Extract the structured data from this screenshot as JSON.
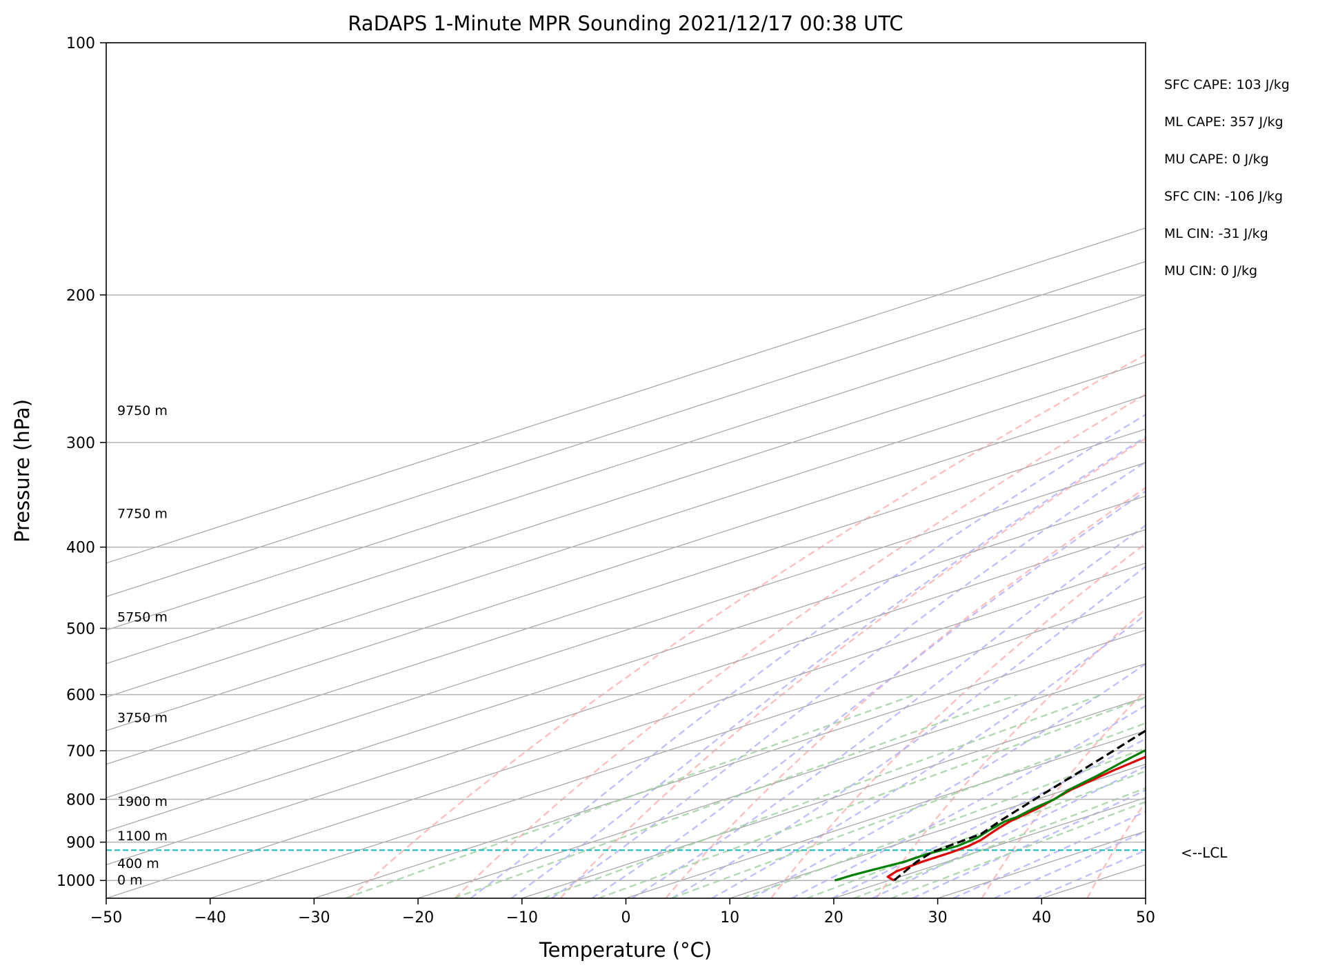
{
  "chart_data": {
    "type": "line",
    "subtype": "skew-t log-p",
    "title": "RaDAPS 1-Minute MPR Sounding 2021/12/17 00:38 UTC",
    "xlabel": "Temperature (°C)",
    "ylabel": "Pressure (hPa)",
    "xlim": [
      -50,
      50
    ],
    "ylim": [
      1050,
      100
    ],
    "y_scale": "log",
    "x_ticks": [
      -50,
      -40,
      -30,
      -20,
      -10,
      0,
      10,
      20,
      30,
      40,
      50
    ],
    "x_tick_labels": [
      "−50",
      "−40",
      "−30",
      "−20",
      "−10",
      "0",
      "10",
      "20",
      "30",
      "40",
      "50"
    ],
    "y_ticks": [
      1000,
      900,
      800,
      700,
      600,
      500,
      400,
      300,
      200,
      100
    ],
    "y_tick_labels": [
      "1000",
      "900",
      "800",
      "700",
      "600",
      "500",
      "400",
      "300",
      "200",
      "100"
    ],
    "grid": true,
    "series": [
      {
        "role": "temperature",
        "color": "#e00000",
        "points": [
          [
            1000,
            20.5
          ],
          [
            990,
            18.8
          ],
          [
            975,
            18.0
          ],
          [
            950,
            17.6
          ],
          [
            925,
            17.6
          ],
          [
            910,
            17.4
          ],
          [
            895,
            16.8
          ],
          [
            870,
            15.2
          ],
          [
            850,
            14.0
          ],
          [
            820,
            12.8
          ],
          [
            780,
            10.5
          ],
          [
            740,
            8.8
          ],
          [
            700,
            7.4
          ],
          [
            660,
            5.7
          ],
          [
            620,
            3.9
          ],
          [
            580,
            2.0
          ],
          [
            540,
            0.0
          ],
          [
            500,
            -2.8
          ],
          [
            470,
            -5.4
          ],
          [
            440,
            -7.6
          ],
          [
            400,
            -11.0
          ],
          [
            360,
            -15.4
          ],
          [
            330,
            -18.5
          ],
          [
            300,
            -22.0
          ],
          [
            280,
            -24.2
          ],
          [
            265,
            -25.4
          ]
        ]
      },
      {
        "role": "dewpoint",
        "color": "#008000",
        "points": [
          [
            1000,
            14.8
          ],
          [
            985,
            14.9
          ],
          [
            970,
            15.3
          ],
          [
            950,
            15.9
          ],
          [
            930,
            15.8
          ],
          [
            910,
            16.3
          ],
          [
            890,
            15.8
          ],
          [
            870,
            14.6
          ],
          [
            850,
            13.5
          ],
          [
            840,
            13.4
          ],
          [
            820,
            12.4
          ],
          [
            800,
            11.7
          ],
          [
            780,
            10.3
          ],
          [
            750,
            8.8
          ],
          [
            720,
            7.0
          ],
          [
            690,
            5.3
          ],
          [
            660,
            3.3
          ],
          [
            640,
            2.4
          ],
          [
            620,
            0.1
          ],
          [
            600,
            -2.6
          ],
          [
            570,
            -7.8
          ],
          [
            545,
            -11.0
          ],
          [
            530,
            -11.7
          ],
          [
            500,
            -14.7
          ],
          [
            470,
            -19.1
          ],
          [
            440,
            -24.4
          ],
          [
            420,
            -26.0
          ],
          [
            400,
            -27.8
          ],
          [
            380,
            -28.2
          ],
          [
            360,
            -29.7
          ],
          [
            340,
            -30.9
          ],
          [
            330,
            -31.2
          ],
          [
            320,
            -31.0
          ],
          [
            310,
            -29.2
          ],
          [
            300,
            -29.6
          ],
          [
            290,
            -31.7
          ],
          [
            280,
            -34.9
          ],
          [
            265,
            -39.3
          ]
        ]
      },
      {
        "role": "parcel",
        "color": "#000000",
        "points": [
          [
            1000,
            20.5
          ],
          [
            950,
            17.1
          ],
          [
            925,
            15.7
          ],
          [
            880,
            15.0
          ],
          [
            850,
            13.0
          ],
          [
            800,
            9.8
          ],
          [
            750,
            6.5
          ],
          [
            700,
            2.9
          ],
          [
            650,
            -1.0
          ],
          [
            600,
            -5.2
          ],
          [
            550,
            -9.9
          ],
          [
            500,
            -15.0
          ],
          [
            450,
            -20.7
          ],
          [
            400,
            -27.1
          ],
          [
            350,
            -34.4
          ],
          [
            300,
            -43.1
          ],
          [
            265,
            -50.0
          ]
        ]
      }
    ],
    "lcl_pressure": 920,
    "lcl_label": "<--LCL",
    "height_labels": [
      {
        "text": "0 m",
        "pressure": 1000
      },
      {
        "text": "400 m",
        "pressure": 955
      },
      {
        "text": "1100 m",
        "pressure": 885
      },
      {
        "text": "1900 m",
        "pressure": 805
      },
      {
        "text": "3750 m",
        "pressure": 640
      },
      {
        "text": "5750 m",
        "pressure": 485
      },
      {
        "text": "7750 m",
        "pressure": 365
      },
      {
        "text": "9750 m",
        "pressure": 275
      }
    ],
    "indices": [
      {
        "text": "SFC CAPE: 103 J/kg"
      },
      {
        "text": "ML CAPE: 357 J/kg"
      },
      {
        "text": "MU CAPE: 0 J/kg"
      },
      {
        "text": "SFC CIN: -106 J/kg"
      },
      {
        "text": "ML CIN: -31 J/kg"
      },
      {
        "text": "MU CIN: 0 J/kg"
      }
    ],
    "colors": {
      "isotherm": "#a9a9a9",
      "isobar": "#b4b4b4",
      "dry_adiabat": "#ffaaaa",
      "moist_adiabat": "#b0b0ff",
      "mixing_ratio": "#9fd19f",
      "lcl_line": "#17b8b8"
    }
  }
}
